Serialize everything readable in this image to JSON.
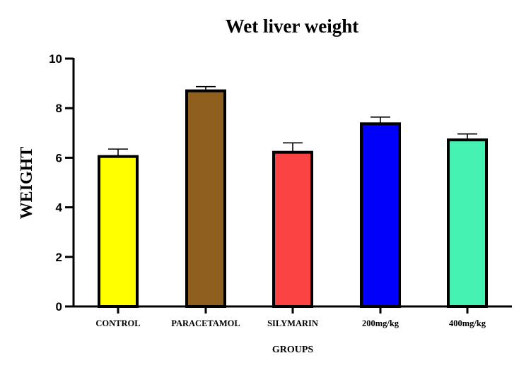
{
  "chart_data": {
    "type": "bar",
    "title": "Wet liver weight",
    "xlabel": "GROUPS",
    "ylabel": "WEIGHT",
    "ylim": [
      0,
      10
    ],
    "yticks": [
      0,
      2,
      4,
      6,
      8,
      10
    ],
    "ytick_labels": [
      "0",
      "2",
      "4",
      "6",
      "8",
      "10"
    ],
    "categories": [
      "CONTROL",
      "PARACETAMOL",
      "SILYMARIN",
      "200mg/kg",
      "400mg/kg"
    ],
    "values": [
      6.05,
      8.7,
      6.22,
      7.37,
      6.72
    ],
    "errors": [
      0.3,
      0.17,
      0.38,
      0.27,
      0.24
    ],
    "colors": [
      "#ffff00",
      "#8f5f1e",
      "#fc4343",
      "#0000fb",
      "#45f2b2"
    ],
    "grid": false,
    "legend": "none"
  }
}
